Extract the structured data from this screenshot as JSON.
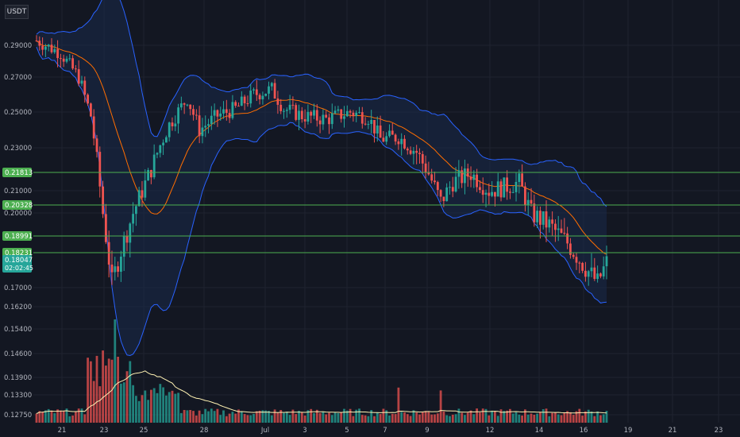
{
  "currency_label": "USDT",
  "colors": {
    "background": "#131722",
    "grid": "#1f2330",
    "up": "#26a69a",
    "down": "#ef5350",
    "bollinger_band": "#2962ff",
    "band_fill": "#1a2a4a",
    "basis": "#ff6d00",
    "volume_ma": "#fff2b3",
    "level_line": "#4caf50",
    "level_label": "#4caf50",
    "price_label": "#26a69a",
    "axis_text": "#b2b5be"
  },
  "chart_data": {
    "type": "candlestick",
    "y_ticks": [
      "0.29000",
      "0.27000",
      "0.25000",
      "0.23000",
      "0.21000",
      "0.20000",
      "0.17000",
      "0.16200",
      "0.15400",
      "0.14600",
      "0.13900",
      "0.13300",
      "0.12750"
    ],
    "x_ticks": [
      "21",
      "23",
      "25",
      "28",
      "Jul",
      "3",
      "5",
      "7",
      "9",
      "12",
      "14",
      "16",
      "19",
      "21",
      "23"
    ],
    "horizontal_levels": [
      {
        "label": "0.21813",
        "value": 0.21813
      },
      {
        "label": "0.20328",
        "value": 0.20328
      },
      {
        "label": "0.18991",
        "value": 0.18991
      },
      {
        "label": "0.18231",
        "value": 0.18231
      }
    ],
    "last_price": {
      "value": "0.18047",
      "countdown": "02:02:45"
    },
    "indicators": [
      "Bollinger Bands",
      "Volume",
      "Volume MA"
    ]
  }
}
